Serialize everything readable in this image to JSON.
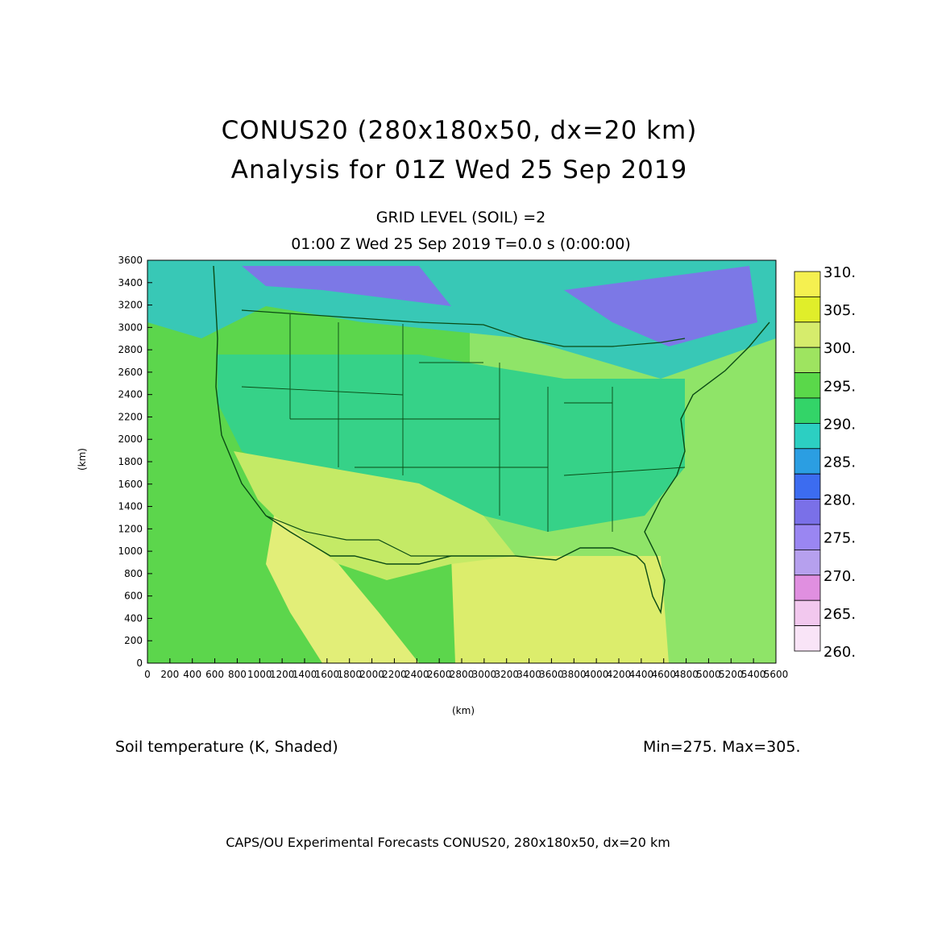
{
  "title": {
    "line1": "CONUS20 (280x180x50, dx=20 km)",
    "line2": "Analysis for 01Z Wed 25 Sep 2019"
  },
  "subtitle": {
    "level": "GRID LEVEL (SOIL) =2",
    "time": "01:00 Z Wed 25 Sep 2019    T=0.0 s (0:00:00)"
  },
  "field_label": "Soil temperature (K, Shaded)",
  "minmax": "Min=275. Max=305.",
  "footer": "CAPS/OU Experimental Forecasts  CONUS20, 280x180x50, dx=20 km",
  "x_axis": {
    "label": "(km)",
    "ticks": [
      "0",
      "200",
      "400",
      "600",
      "800",
      "1000",
      "1200",
      "1400",
      "1600",
      "1800",
      "2000",
      "2200",
      "2400",
      "2600",
      "2800",
      "3000",
      "3200",
      "3400",
      "3600",
      "3800",
      "4000",
      "4200",
      "4400",
      "4600",
      "4800",
      "5000",
      "5200",
      "5400",
      "5600"
    ],
    "range": [
      0,
      5600
    ]
  },
  "y_axis": {
    "label": "(km)",
    "ticks": [
      "0",
      "200",
      "400",
      "600",
      "800",
      "1000",
      "1200",
      "1400",
      "1600",
      "1800",
      "2000",
      "2200",
      "2400",
      "2600",
      "2800",
      "3000",
      "3200",
      "3400",
      "3600"
    ],
    "range": [
      0,
      3600
    ]
  },
  "colorbar": {
    "labels": [
      "310.",
      "305.",
      "300.",
      "295.",
      "290.",
      "285.",
      "280.",
      "275.",
      "270.",
      "265.",
      "260."
    ],
    "colors": [
      "#f5f050",
      "#e0ee2a",
      "#d6ec6c",
      "#9ee460",
      "#5ad84a",
      "#33d468",
      "#2ccfc2",
      "#2b9ee2",
      "#3c6cf0",
      "#7a70e8",
      "#9a86f2",
      "#b6a0ee",
      "#e08fe0",
      "#f2c8ee",
      "#f9e4f7"
    ]
  },
  "regions": {
    "ocean_west": "#5cd64c",
    "ocean_east": "#8fe468",
    "gulf": "#dced6c",
    "north_canada": "#38c8b6",
    "cold_core": "#7c78e6",
    "interior": "#36d288",
    "southwest": "#c4ea66",
    "mexico": "#e2ee78",
    "coast_line": "#0a4a14"
  }
}
